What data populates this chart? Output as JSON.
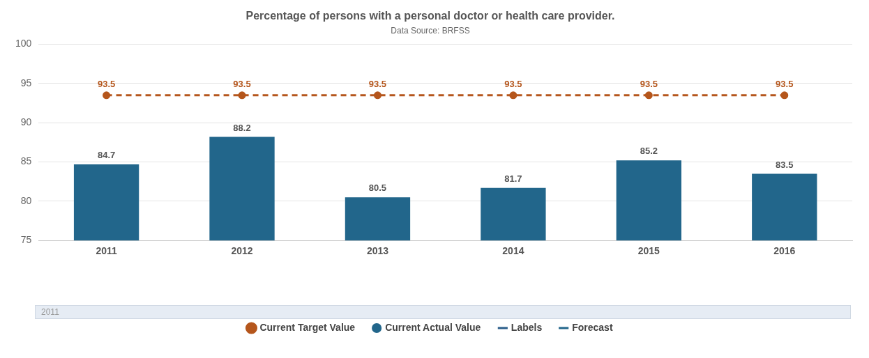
{
  "chart_data": {
    "type": "bar",
    "title": "Percentage of persons with a personal doctor or health care provider.",
    "subtitle": "Data Source: BRFSS",
    "categories": [
      "2011",
      "2012",
      "2013",
      "2014",
      "2015",
      "2016"
    ],
    "series": [
      {
        "name": "Current Target Value",
        "type": "line",
        "color": "#b5561c",
        "line_style": "dashed",
        "marker": "circle",
        "values": [
          93.5,
          93.5,
          93.5,
          93.5,
          93.5,
          93.5
        ]
      },
      {
        "name": "Current Actual Value",
        "color": "#22668b",
        "values": [
          84.7,
          88.2,
          80.5,
          81.7,
          85.2,
          83.5
        ]
      },
      {
        "name": "Labels",
        "type": "line",
        "color": "#2a5d8a",
        "line_style": "solid",
        "marker": "none",
        "values": [
          null,
          null,
          null,
          null,
          null,
          null
        ]
      },
      {
        "name": "Forecast",
        "type": "line",
        "color": "#22668b",
        "line_style": "dashed",
        "marker": "none",
        "values": [
          null,
          null,
          null,
          null,
          null,
          null
        ]
      }
    ],
    "ylim": [
      75,
      100
    ],
    "yticks": [
      75,
      80,
      85,
      90,
      95,
      100
    ],
    "grid": "y",
    "legend": "bottom",
    "data_labels": true,
    "annotations": [
      "2011"
    ]
  }
}
